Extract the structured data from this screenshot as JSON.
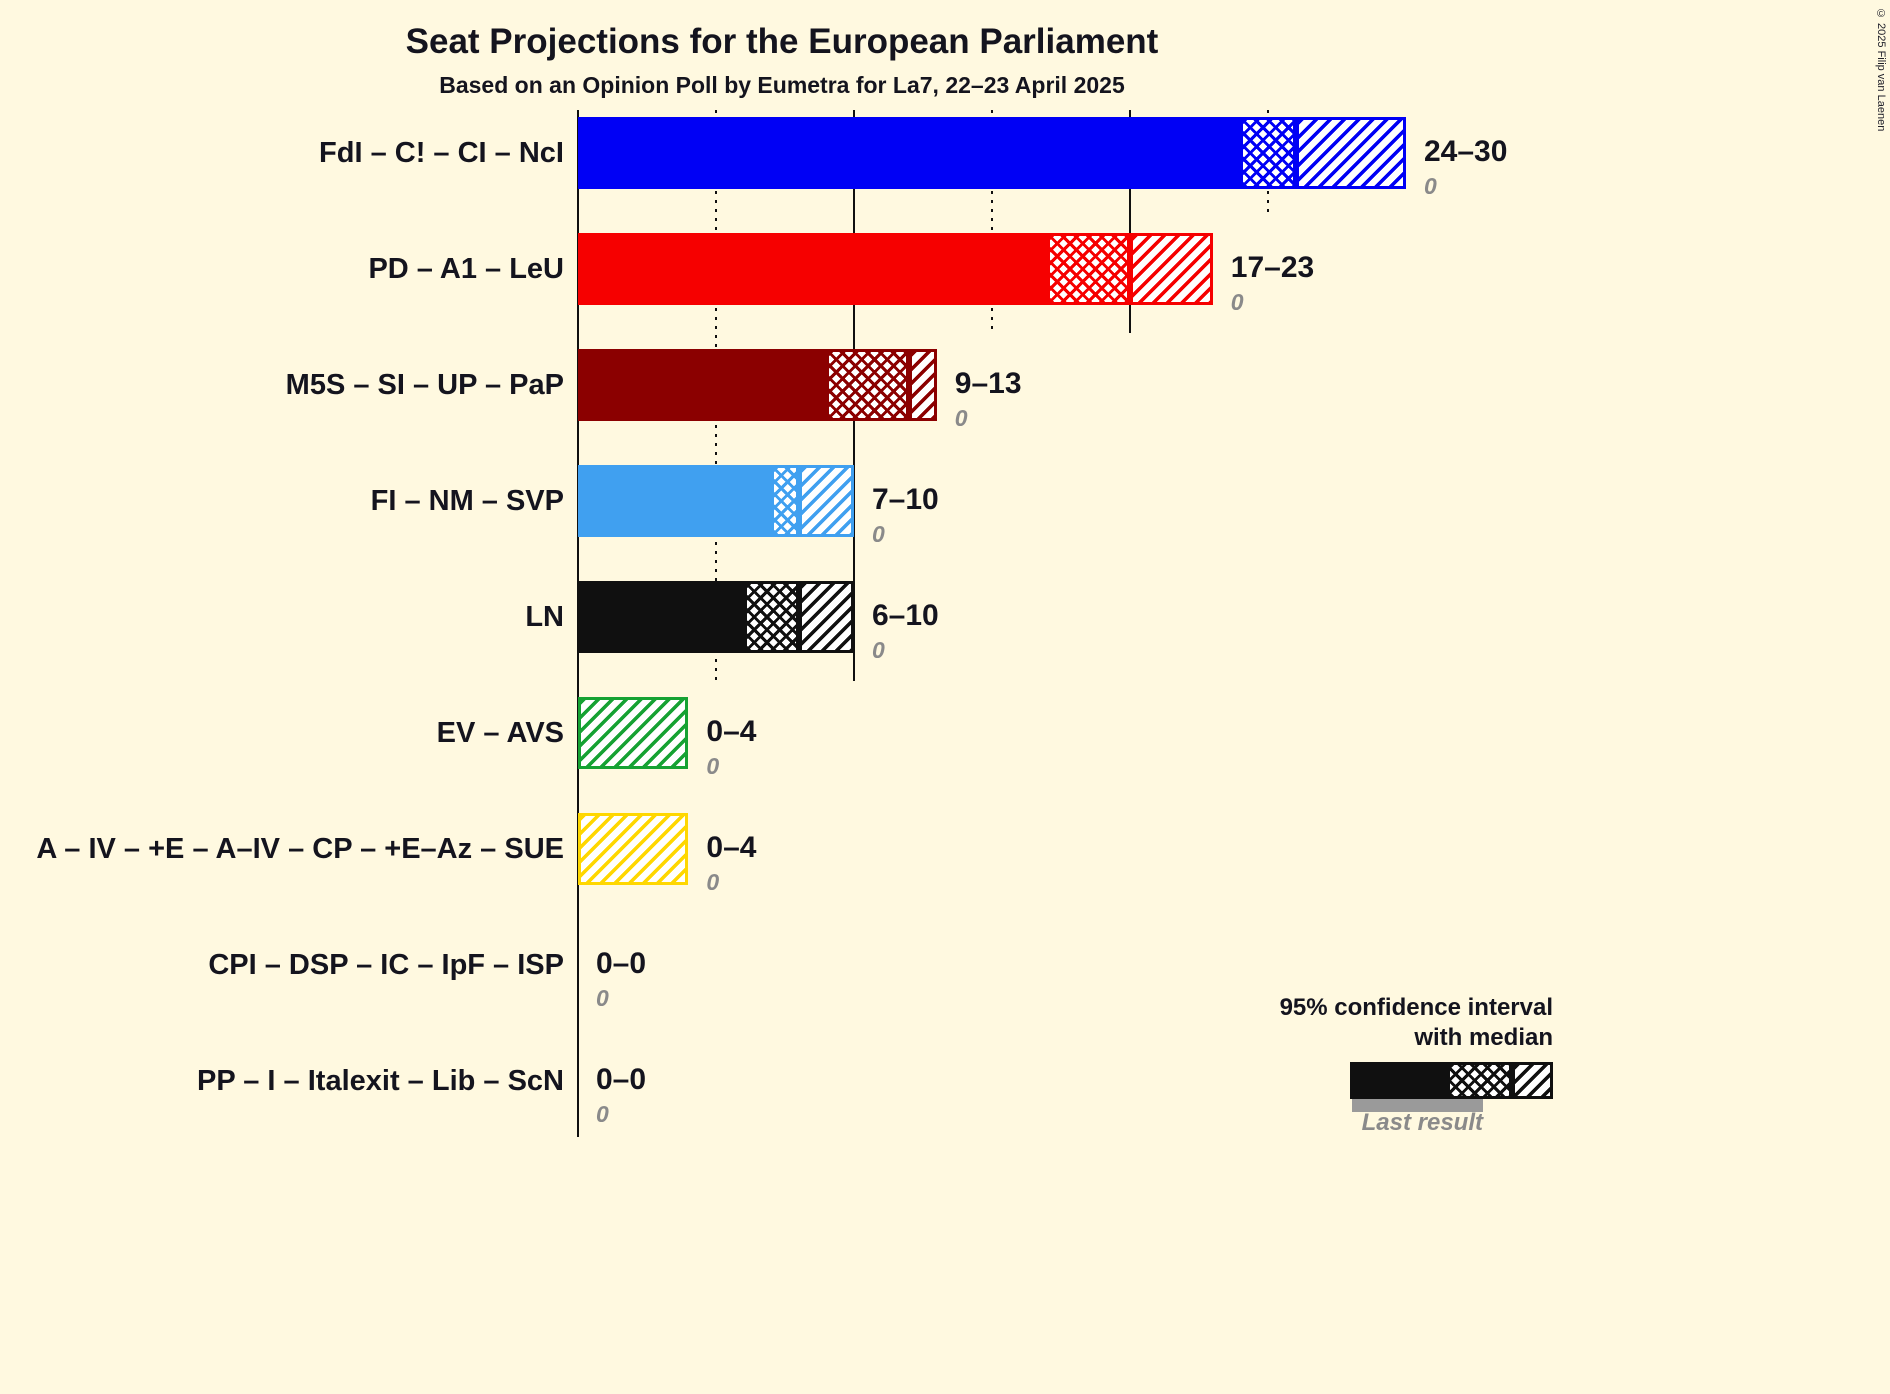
{
  "title": "Seat Projections for the European Parliament",
  "subtitle": "Based on an Opinion Poll by Eumetra for La7, 22–23 April 2025",
  "copyright": "© 2025 Filip van Laenen",
  "legend": {
    "ci_label_line1": "95% confidence interval",
    "ci_label_line2": "with median",
    "last_result_label": "Last result"
  },
  "colors": {
    "background": "#FFF9E0",
    "text": "#14141E",
    "muted": "#8A8A8A"
  },
  "chart_data": {
    "type": "bar",
    "orientation": "horizontal",
    "x_axis": {
      "min": 0,
      "max": 30,
      "solid_gridlines": [
        10,
        20
      ],
      "dotted_gridlines": [
        5,
        15,
        25
      ]
    },
    "legend_position": "bottom-right",
    "parties": [
      {
        "label": "FdI – C! – CI – NcI",
        "ci_lower": 24,
        "median": 26,
        "ci_upper": 30,
        "range_label": "24–30",
        "last_result": "0",
        "color": "#0000F5"
      },
      {
        "label": "PD – A1 – LeU",
        "ci_lower": 17,
        "median": 20,
        "ci_upper": 23,
        "range_label": "17–23",
        "last_result": "0",
        "color": "#F60000"
      },
      {
        "label": "M5S – SI – UP – PaP",
        "ci_lower": 9,
        "median": 12,
        "ci_upper": 13,
        "range_label": "9–13",
        "last_result": "0",
        "color": "#8B0000"
      },
      {
        "label": "FI – NM – SVP",
        "ci_lower": 7,
        "median": 8,
        "ci_upper": 10,
        "range_label": "7–10",
        "last_result": "0",
        "color": "#40A0F0"
      },
      {
        "label": "LN",
        "ci_lower": 6,
        "median": 8,
        "ci_upper": 10,
        "range_label": "6–10",
        "last_result": "0",
        "color": "#101010"
      },
      {
        "label": "EV – AVS",
        "ci_lower": 0,
        "median": 0,
        "ci_upper": 4,
        "range_label": "0–4",
        "last_result": "0",
        "color": "#16A233"
      },
      {
        "label": "A – IV – +E – A–IV – CP – +E–Az – SUE",
        "ci_lower": 0,
        "median": 0,
        "ci_upper": 4,
        "range_label": "0–4",
        "last_result": "0",
        "color": "#FFD700"
      },
      {
        "label": "CPI – DSP – IC – IpF – ISP",
        "ci_lower": 0,
        "median": 0,
        "ci_upper": 0,
        "range_label": "0–0",
        "last_result": "0",
        "color": "#101010"
      },
      {
        "label": "PP – I – Italexit – Lib – ScN",
        "ci_lower": 0,
        "median": 0,
        "ci_upper": 0,
        "range_label": "0–0",
        "last_result": "0",
        "color": "#101010"
      }
    ]
  }
}
